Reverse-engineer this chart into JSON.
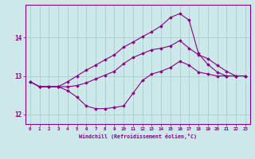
{
  "xlabel": "Windchill (Refroidissement éolien,°C)",
  "bg_color": "#cce8e8",
  "grid_color": "#aacece",
  "line_color": "#880088",
  "xlim": [
    -0.5,
    23.5
  ],
  "ylim": [
    11.75,
    14.85
  ],
  "yticks": [
    12,
    13,
    14
  ],
  "xticks": [
    0,
    1,
    2,
    3,
    4,
    5,
    6,
    7,
    8,
    9,
    10,
    11,
    12,
    13,
    14,
    15,
    16,
    17,
    18,
    19,
    20,
    21,
    22,
    23
  ],
  "series": [
    [
      12.85,
      12.72,
      12.72,
      12.72,
      12.62,
      12.45,
      12.22,
      12.15,
      12.15,
      12.18,
      12.22,
      12.55,
      12.88,
      13.05,
      13.12,
      13.22,
      13.38,
      13.28,
      13.1,
      13.05,
      13.0,
      13.0,
      13.0,
      13.0
    ],
    [
      12.85,
      12.72,
      12.72,
      12.72,
      12.72,
      12.75,
      12.82,
      12.92,
      13.02,
      13.12,
      13.32,
      13.48,
      13.58,
      13.68,
      13.72,
      13.78,
      13.92,
      13.72,
      13.55,
      13.45,
      13.28,
      13.12,
      13.0,
      13.0
    ],
    [
      12.85,
      12.72,
      12.72,
      12.72,
      12.85,
      13.0,
      13.15,
      13.28,
      13.42,
      13.55,
      13.75,
      13.88,
      14.02,
      14.15,
      14.3,
      14.52,
      14.62,
      14.45,
      13.58,
      13.3,
      13.1,
      13.0,
      13.0,
      13.0
    ]
  ]
}
